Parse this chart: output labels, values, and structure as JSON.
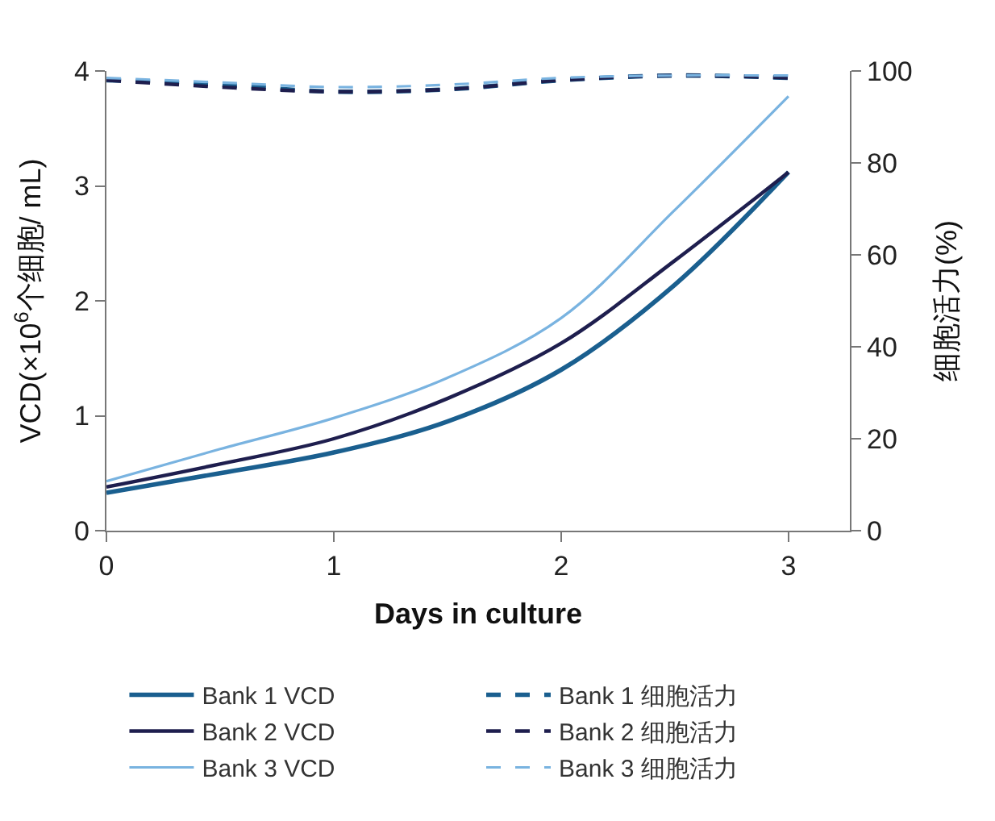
{
  "chart_data": {
    "type": "line",
    "xlabel": "Days in culture",
    "ylabel": "VCD(×10$^{6}$个细胞/ mL)",
    "y2label": "细胞活力(%)",
    "x": [
      0,
      0.5,
      1,
      1.5,
      2,
      2.5,
      3
    ],
    "xlim": [
      0,
      3.27
    ],
    "xticks": [
      0,
      1,
      2,
      3
    ],
    "ylim": [
      0,
      4
    ],
    "yticks": [
      0,
      1,
      2,
      3,
      4
    ],
    "y2lim": [
      0,
      100
    ],
    "y2ticks": [
      0,
      20,
      40,
      60,
      80,
      100
    ],
    "legend": "bottom",
    "marker": "none",
    "series": [
      {
        "name": "Bank 1 VCD",
        "color": "#1a5f8f",
        "line_style": "solid",
        "values": [
          0.33,
          0.5,
          0.68,
          0.95,
          1.4,
          2.14,
          3.12
        ]
      },
      {
        "name": "Bank 2 VCD",
        "color": "#1e1e4e",
        "line_style": "solid",
        "values": [
          0.38,
          0.58,
          0.8,
          1.15,
          1.63,
          2.35,
          3.12
        ]
      },
      {
        "name": "Bank 3 VCD",
        "color": "#79b3e0",
        "line_style": "solid",
        "values": [
          0.43,
          0.71,
          0.98,
          1.33,
          1.85,
          2.79,
          3.78
        ]
      },
      {
        "name": "Bank 1 细胞活力",
        "color": "#1a5f8f",
        "line_style": "dashed",
        "axis": "y2",
        "values": [
          98,
          97,
          95.5,
          96,
          98,
          99,
          98.5
        ]
      },
      {
        "name": "Bank 2 细胞活力",
        "color": "#1e1e4e",
        "line_style": "dashed",
        "axis": "y2",
        "values": [
          98,
          96.5,
          95.5,
          96,
          98,
          99,
          98.5
        ]
      },
      {
        "name": "Bank 3 细胞活力",
        "color": "#79b3e0",
        "line_style": "dashed",
        "axis": "y2",
        "values": [
          98.5,
          97.5,
          96.5,
          97,
          98.5,
          99,
          99
        ]
      }
    ]
  }
}
